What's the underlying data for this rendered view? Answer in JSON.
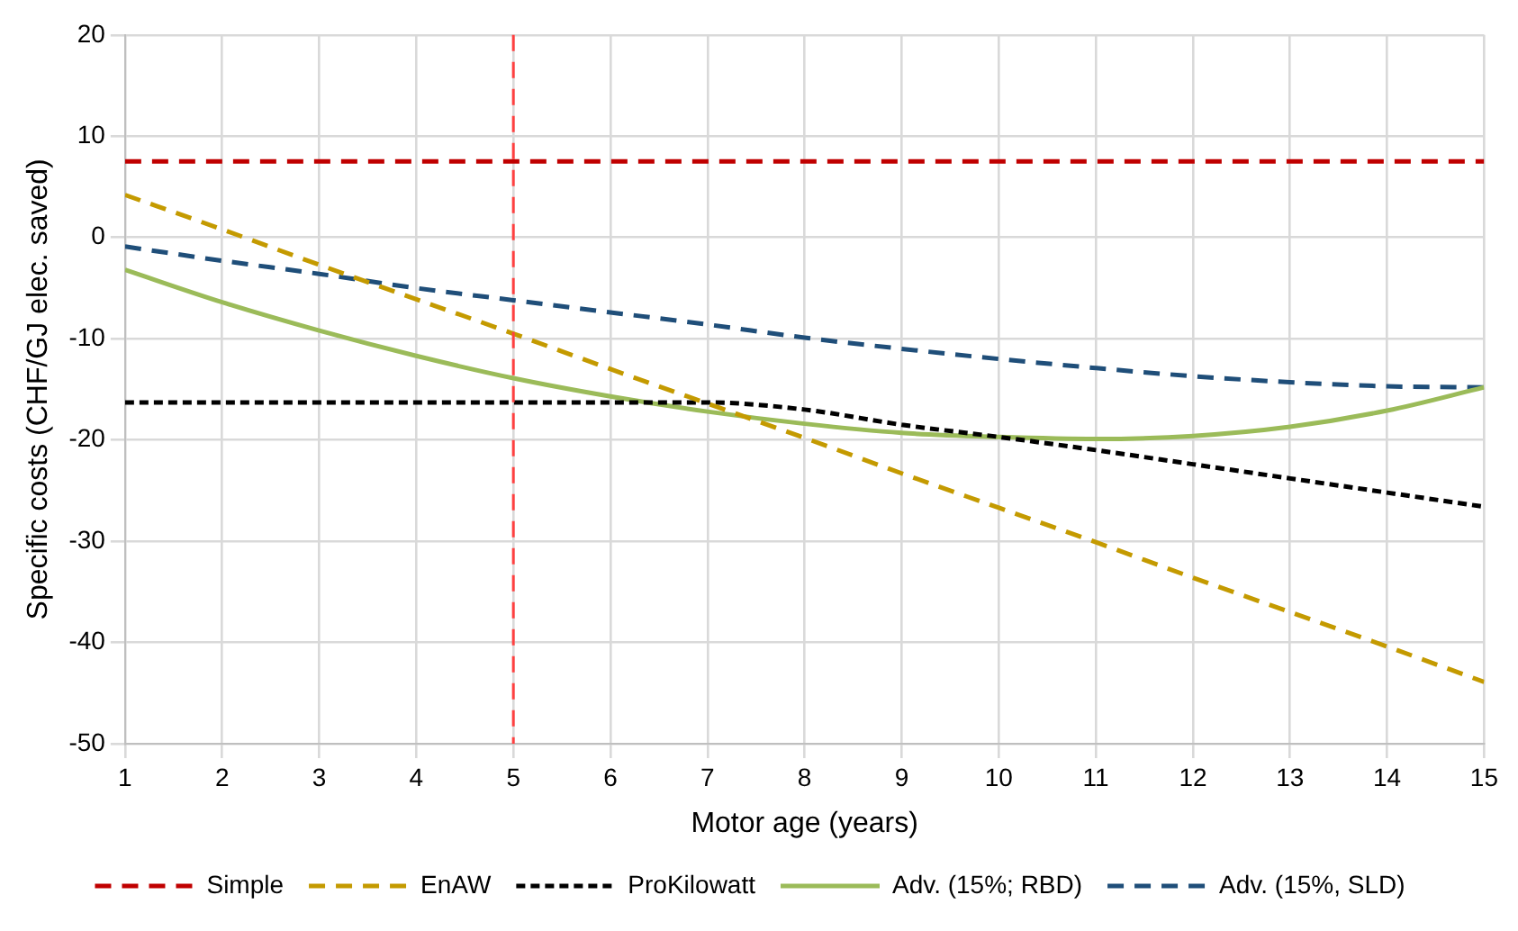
{
  "chart_data": {
    "type": "line",
    "xlabel": "Motor age (years)",
    "ylabel": "Specific costs (CHF/GJ elec. saved)",
    "x": [
      1,
      2,
      3,
      4,
      5,
      6,
      7,
      8,
      9,
      10,
      11,
      12,
      13,
      14,
      15
    ],
    "xlim": [
      1,
      15
    ],
    "xticks": [
      1,
      2,
      3,
      4,
      5,
      6,
      7,
      8,
      9,
      10,
      11,
      12,
      13,
      14,
      15
    ],
    "ylim": [
      -50,
      20
    ],
    "yticks": [
      -50,
      -40,
      -30,
      -20,
      -10,
      0,
      10,
      20
    ],
    "grid": true,
    "legend": "bottom",
    "marker": "none",
    "series": [
      {
        "name": "Simple",
        "color": "#c00000",
        "line_style": "dashed",
        "values": [
          7.5,
          7.5,
          7.5,
          7.5,
          7.5,
          7.5,
          7.5,
          7.5,
          7.5,
          7.5,
          7.5,
          7.5,
          7.5,
          7.5,
          7.5
        ]
      },
      {
        "name": "EnAW",
        "color": "#c49a00",
        "line_style": "dashed",
        "values": [
          4.2,
          0.8,
          -2.7,
          -6.1,
          -9.5,
          -13.0,
          -16.4,
          -19.8,
          -23.3,
          -26.7,
          -30.1,
          -33.6,
          -37.0,
          -40.4,
          -43.9
        ]
      },
      {
        "name": "ProKilowatt",
        "color": "#000000",
        "line_style": "dotted",
        "values": [
          -16.3,
          -16.3,
          -16.3,
          -16.3,
          -16.3,
          -16.3,
          -16.3,
          -17.0,
          -18.5,
          -19.7,
          -21.0,
          -22.4,
          -23.8,
          -25.2,
          -26.6
        ]
      },
      {
        "name": "Adv. (15%; RBD)",
        "color": "#9bbb59",
        "line_style": "solid",
        "values": [
          -3.2,
          -6.4,
          -9.2,
          -11.7,
          -13.9,
          -15.7,
          -17.2,
          -18.4,
          -19.3,
          -19.7,
          -19.9,
          -19.6,
          -18.7,
          -17.1,
          -14.8
        ]
      },
      {
        "name": "Adv. (15%, SLD)",
        "color": "#1f4e79",
        "line_style": "dashed",
        "values": [
          -0.9,
          -2.3,
          -3.6,
          -5.0,
          -6.2,
          -7.4,
          -8.6,
          -9.9,
          -11.0,
          -12.0,
          -12.9,
          -13.7,
          -14.3,
          -14.7,
          -14.8
        ]
      }
    ],
    "ref_lines": [
      {
        "axis": "x",
        "value": 5,
        "color": "#ff4040",
        "line_style": "dashed"
      }
    ]
  }
}
